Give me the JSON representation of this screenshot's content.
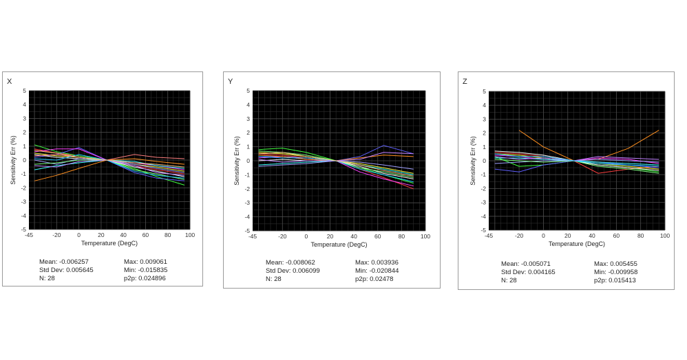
{
  "chart_data": [
    {
      "type": "line",
      "title": "X",
      "xlabel": "Temperature (DegC)",
      "ylabel": "Sensitivity Err (%)",
      "xlim": [
        -45,
        100
      ],
      "ylim": [
        -5,
        5
      ],
      "xticks": [
        "-45",
        "-20",
        "0",
        "20",
        "40",
        "60",
        "80",
        "100"
      ],
      "yticks": [
        "5",
        "4",
        "3",
        "2",
        "1",
        "0",
        "-1",
        "-2",
        "-3",
        "-4",
        "-5"
      ],
      "x": [
        -40,
        -20,
        0,
        25,
        50,
        70,
        95
      ],
      "series": [
        {
          "color": "#ff4040",
          "values": [
            0.8,
            0.5,
            0.3,
            0.0,
            -0.4,
            -0.7,
            -1.0
          ]
        },
        {
          "color": "#40ff40",
          "values": [
            1.1,
            0.6,
            0.3,
            0.0,
            -0.6,
            -1.2,
            -1.8
          ]
        },
        {
          "color": "#6060ff",
          "values": [
            0.2,
            0.4,
            0.9,
            0.0,
            -0.9,
            -1.3,
            -1.5
          ]
        },
        {
          "color": "#ffff40",
          "values": [
            0.5,
            0.3,
            0.2,
            0.0,
            -0.3,
            -0.5,
            -0.8
          ]
        },
        {
          "color": "#ff40ff",
          "values": [
            0.6,
            0.8,
            0.8,
            0.0,
            -0.2,
            -0.4,
            -0.7
          ]
        },
        {
          "color": "#40ffff",
          "values": [
            -0.7,
            -0.4,
            -0.2,
            0.0,
            -0.1,
            -0.4,
            -0.6
          ]
        },
        {
          "color": "#ff9020",
          "values": [
            -1.5,
            -1.1,
            -0.6,
            0.0,
            0.1,
            -0.1,
            -0.3
          ]
        },
        {
          "color": "#ffffff",
          "values": [
            0.4,
            0.2,
            0.1,
            0.0,
            -0.5,
            -0.8,
            -1.2
          ]
        },
        {
          "color": "#a0a0ff",
          "values": [
            0.0,
            -0.3,
            0.1,
            0.0,
            -0.3,
            -0.6,
            -0.9
          ]
        },
        {
          "color": "#ff8080",
          "values": [
            0.3,
            0.4,
            0.2,
            0.0,
            0.4,
            0.2,
            0.1
          ]
        },
        {
          "color": "#80ff80",
          "values": [
            -0.3,
            -0.2,
            0.0,
            0.0,
            -0.7,
            -1.0,
            -1.4
          ]
        },
        {
          "color": "#c080ff",
          "values": [
            -0.4,
            -0.5,
            -0.1,
            0.0,
            -0.4,
            -0.9,
            -1.1
          ]
        },
        {
          "color": "#20c0ff",
          "values": [
            0.1,
            0.0,
            0.4,
            0.0,
            -0.8,
            -1.1,
            -1.3
          ]
        },
        {
          "color": "#ffc080",
          "values": [
            0.7,
            0.5,
            0.2,
            0.0,
            -0.2,
            -0.3,
            -0.5
          ]
        }
      ],
      "stats": {
        "left": [
          "Mean: -0.006257",
          "Std Dev: 0.005645",
          "N: 28"
        ],
        "right": [
          "Max: 0.009061",
          "Min: -0.015835",
          "p2p: 0.024896"
        ]
      }
    },
    {
      "type": "line",
      "title": "Y",
      "xlabel": "Temperature (DegC)",
      "ylabel": "Sensitivity Err (%)",
      "xlim": [
        -45,
        100
      ],
      "ylim": [
        -5,
        5
      ],
      "xticks": [
        "-45",
        "-20",
        "0",
        "20",
        "40",
        "60",
        "80",
        "100"
      ],
      "yticks": [
        "5",
        "4",
        "3",
        "2",
        "1",
        "0",
        "-1",
        "-2",
        "-3",
        "-4",
        "-5"
      ],
      "x": [
        -40,
        -20,
        0,
        25,
        45,
        65,
        90
      ],
      "series": [
        {
          "color": "#40ff40",
          "values": [
            0.8,
            0.9,
            0.6,
            0.0,
            -0.5,
            -1.0,
            -1.6
          ]
        },
        {
          "color": "#6060ff",
          "values": [
            0.3,
            0.3,
            0.2,
            0.0,
            0.3,
            1.1,
            0.5
          ]
        },
        {
          "color": "#ff4040",
          "values": [
            0.5,
            0.4,
            0.2,
            0.0,
            -0.6,
            -1.2,
            -2.0
          ]
        },
        {
          "color": "#ffff40",
          "values": [
            0.6,
            0.5,
            0.3,
            0.0,
            -0.2,
            -0.5,
            -0.9
          ]
        },
        {
          "color": "#ff40ff",
          "values": [
            0.2,
            0.3,
            0.1,
            0.0,
            -0.8,
            -1.3,
            -1.8
          ]
        },
        {
          "color": "#40ffff",
          "values": [
            -0.3,
            -0.2,
            -0.1,
            0.0,
            -0.3,
            -0.6,
            -1.0
          ]
        },
        {
          "color": "#ff9020",
          "values": [
            0.4,
            0.3,
            0.1,
            0.0,
            0.2,
            0.4,
            0.3
          ]
        },
        {
          "color": "#ffffff",
          "values": [
            0.0,
            0.1,
            0.0,
            0.0,
            -0.4,
            -0.9,
            -1.3
          ]
        },
        {
          "color": "#a0a0ff",
          "values": [
            -0.4,
            -0.3,
            -0.2,
            0.0,
            -0.1,
            -0.3,
            -0.6
          ]
        },
        {
          "color": "#80ff80",
          "values": [
            0.7,
            0.6,
            0.4,
            0.0,
            -0.5,
            -0.8,
            -1.2
          ]
        },
        {
          "color": "#c080ff",
          "values": [
            0.1,
            -0.1,
            0.0,
            0.0,
            0.1,
            0.6,
            0.5
          ]
        },
        {
          "color": "#20c0ff",
          "values": [
            0.3,
            0.2,
            0.2,
            0.0,
            -0.6,
            -1.0,
            -1.5
          ]
        },
        {
          "color": "#ffc080",
          "values": [
            0.5,
            0.6,
            0.3,
            0.0,
            -0.3,
            -0.7,
            -1.1
          ]
        }
      ],
      "stats": {
        "left": [
          "Mean: -0.008062",
          "Std Dev: 0.006099",
          "N: 28"
        ],
        "right": [
          "Max: 0.003936",
          "Min: -0.020844",
          "p2p: 0.02478"
        ]
      }
    },
    {
      "type": "line",
      "title": "Z",
      "xlabel": "Temperature (DegC)",
      "ylabel": "Sensitivity Err (%)",
      "xlim": [
        -45,
        100
      ],
      "ylim": [
        -5,
        5
      ],
      "xticks": [
        "-45",
        "-20",
        "0",
        "20",
        "40",
        "60",
        "80",
        "100"
      ],
      "yticks": [
        "5",
        "4",
        "3",
        "2",
        "1",
        "0",
        "-1",
        "-2",
        "-3",
        "-4",
        "-5"
      ],
      "x": [
        -40,
        -20,
        0,
        25,
        45,
        70,
        95
      ],
      "series": [
        {
          "color": "#ff9020",
          "values": [
            null,
            2.2,
            1.0,
            0.0,
            0.1,
            0.9,
            2.2
          ]
        },
        {
          "color": "#ff4040",
          "values": [
            0.6,
            0.5,
            0.3,
            0.0,
            -0.9,
            -0.6,
            -0.4
          ]
        },
        {
          "color": "#40ff40",
          "values": [
            0.3,
            -0.4,
            -0.3,
            0.0,
            -0.3,
            -0.5,
            -0.8
          ]
        },
        {
          "color": "#6060ff",
          "values": [
            -0.6,
            -0.8,
            -0.3,
            0.0,
            -0.1,
            -0.3,
            -0.5
          ]
        },
        {
          "color": "#ffff40",
          "values": [
            0.5,
            0.4,
            0.2,
            0.0,
            -0.2,
            -0.4,
            -0.6
          ]
        },
        {
          "color": "#ff40ff",
          "values": [
            0.4,
            0.3,
            0.1,
            0.0,
            0.2,
            0.1,
            -0.2
          ]
        },
        {
          "color": "#40ffff",
          "values": [
            0.2,
            0.2,
            0.1,
            0.0,
            -0.1,
            -0.2,
            -0.3
          ]
        },
        {
          "color": "#ffffff",
          "values": [
            0.7,
            0.6,
            0.4,
            0.0,
            -0.3,
            -0.5,
            -0.7
          ]
        },
        {
          "color": "#a0a0ff",
          "values": [
            -0.2,
            -0.1,
            0.0,
            0.0,
            0.1,
            0.0,
            -0.1
          ]
        },
        {
          "color": "#80ff80",
          "values": [
            0.1,
            0.0,
            -0.1,
            0.0,
            -0.4,
            -0.6,
            -0.9
          ]
        },
        {
          "color": "#c080ff",
          "values": [
            0.3,
            0.1,
            0.2,
            0.0,
            0.3,
            0.2,
            0.1
          ]
        },
        {
          "color": "#20c0ff",
          "values": [
            0.5,
            0.3,
            0.3,
            0.0,
            -0.2,
            -0.3,
            -0.4
          ]
        }
      ],
      "stats": {
        "left": [
          "Mean: -0.005071",
          "Std Dev: 0.004165",
          "N: 28"
        ],
        "right": [
          "Max: 0.005455",
          "Min: -0.009958",
          "p2p: 0.015413"
        ]
      }
    }
  ]
}
